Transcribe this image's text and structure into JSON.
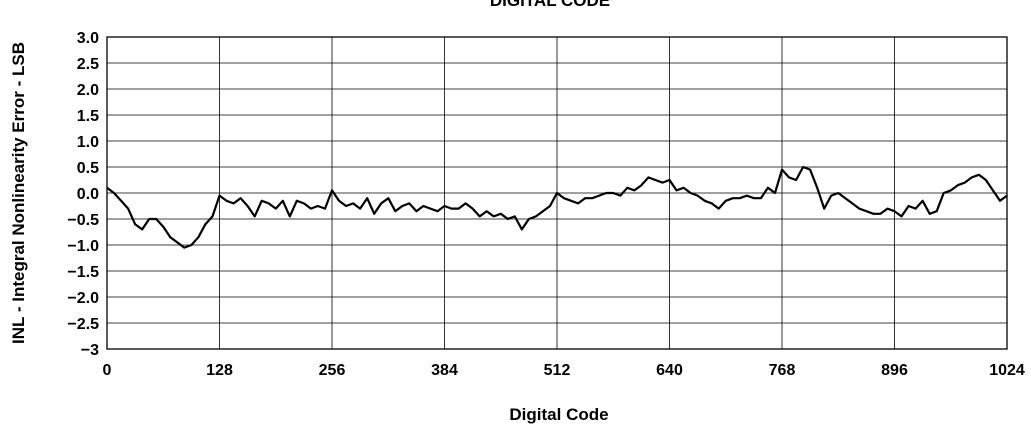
{
  "chart_data": {
    "type": "line",
    "title": "DIGITAL CODE",
    "xlabel": "Digital Code",
    "ylabel": "INL - Integral Nonlinearity Error - LSB",
    "xlim": [
      0,
      1024
    ],
    "ylim": [
      -3,
      3
    ],
    "x_ticks": [
      "0",
      "128",
      "256",
      "384",
      "512",
      "640",
      "768",
      "896",
      "1024"
    ],
    "y_ticks": [
      "3.0",
      "2.5",
      "2.0",
      "1.5",
      "1.0",
      "0.5",
      "0.0",
      "−0.5",
      "−1.0",
      "−1.5",
      "−2.0",
      "−2.5",
      "−3"
    ],
    "grid": true,
    "series": [
      {
        "color": "#000000",
        "x": [
          0,
          8,
          16,
          24,
          32,
          40,
          48,
          56,
          64,
          72,
          80,
          88,
          96,
          104,
          112,
          120,
          128,
          136,
          144,
          152,
          160,
          168,
          176,
          184,
          192,
          200,
          208,
          216,
          224,
          232,
          240,
          248,
          256,
          264,
          272,
          280,
          288,
          296,
          304,
          312,
          320,
          328,
          336,
          344,
          352,
          360,
          368,
          376,
          384,
          392,
          400,
          408,
          416,
          424,
          432,
          440,
          448,
          456,
          464,
          472,
          480,
          488,
          496,
          504,
          512,
          520,
          528,
          536,
          544,
          552,
          560,
          568,
          576,
          584,
          592,
          600,
          608,
          616,
          624,
          632,
          640,
          648,
          656,
          664,
          672,
          680,
          688,
          696,
          704,
          712,
          720,
          728,
          736,
          744,
          752,
          760,
          768,
          776,
          784,
          792,
          800,
          808,
          816,
          824,
          832,
          840,
          848,
          856,
          864,
          872,
          880,
          888,
          896,
          904,
          912,
          920,
          928,
          936,
          944,
          952,
          960,
          968,
          976,
          984,
          992,
          1000,
          1008,
          1016,
          1024
        ],
        "y": [
          0.1,
          0.0,
          -0.15,
          -0.3,
          -0.6,
          -0.7,
          -0.5,
          -0.5,
          -0.65,
          -0.85,
          -0.95,
          -1.05,
          -1.0,
          -0.85,
          -0.6,
          -0.45,
          -0.05,
          -0.15,
          -0.2,
          -0.1,
          -0.25,
          -0.45,
          -0.15,
          -0.2,
          -0.3,
          -0.15,
          -0.45,
          -0.15,
          -0.2,
          -0.3,
          -0.25,
          -0.3,
          0.05,
          -0.15,
          -0.25,
          -0.2,
          -0.3,
          -0.1,
          -0.4,
          -0.2,
          -0.1,
          -0.35,
          -0.25,
          -0.2,
          -0.35,
          -0.25,
          -0.3,
          -0.35,
          -0.25,
          -0.3,
          -0.3,
          -0.2,
          -0.3,
          -0.45,
          -0.35,
          -0.45,
          -0.4,
          -0.5,
          -0.45,
          -0.7,
          -0.5,
          -0.45,
          -0.35,
          -0.25,
          0.0,
          -0.1,
          -0.15,
          -0.2,
          -0.1,
          -0.1,
          -0.05,
          0.0,
          0.0,
          -0.05,
          0.1,
          0.05,
          0.15,
          0.3,
          0.25,
          0.2,
          0.25,
          0.05,
          0.1,
          0.0,
          -0.05,
          -0.15,
          -0.2,
          -0.3,
          -0.15,
          -0.1,
          -0.1,
          -0.05,
          -0.1,
          -0.1,
          0.1,
          0.0,
          0.45,
          0.3,
          0.25,
          0.5,
          0.45,
          0.1,
          -0.3,
          -0.05,
          0.0,
          -0.1,
          -0.2,
          -0.3,
          -0.35,
          -0.4,
          -0.4,
          -0.3,
          -0.35,
          -0.45,
          -0.25,
          -0.3,
          -0.15,
          -0.4,
          -0.35,
          0.0,
          0.05,
          0.15,
          0.2,
          0.3,
          0.35,
          0.25,
          0.05,
          -0.15,
          -0.05
        ]
      }
    ]
  }
}
